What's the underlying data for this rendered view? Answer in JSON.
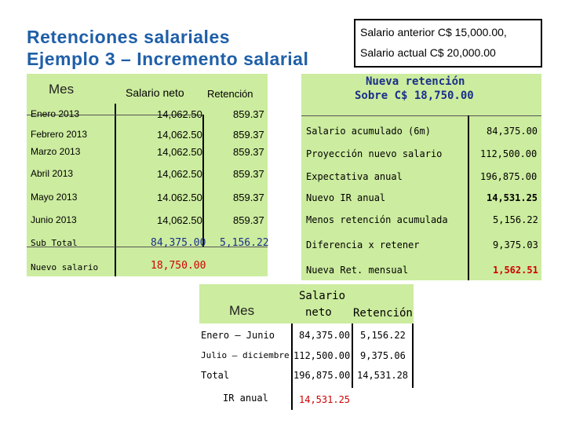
{
  "titles": {
    "line1": "Retenciones salariales",
    "line2": "Ejemplo 3 – Incremento salarial"
  },
  "info": {
    "line1": "Salario anterior C$ 15,000.00,",
    "line2": "Salario actual C$ 20,000.00"
  },
  "left_table": {
    "headers": {
      "mes": "Mes",
      "salario": "Salario neto",
      "retencion": "Retención"
    },
    "rows": [
      {
        "mes": "Enero 2013",
        "salario": "14,062.50",
        "retencion": "859.37"
      },
      {
        "mes": "Febrero 2013",
        "salario": "14,062.50",
        "retencion": "859.37"
      },
      {
        "mes": "Marzo 2013",
        "salario": "14,062.50",
        "retencion": "859.37"
      },
      {
        "mes": "Abril 2013",
        "salario": "14,062.50",
        "retencion": "859.37"
      },
      {
        "mes": "Mayo 2013",
        "salario": "14.062.50",
        "retencion": "859.37"
      },
      {
        "mes": "Junio 2013",
        "salario": "14,062.50",
        "retencion": "859.37"
      }
    ],
    "subtotal": {
      "label": "Sub Total",
      "salario": "84,375.00",
      "retencion": "5,156.22"
    },
    "nuevo": {
      "label": "Nuevo salario",
      "salario": "18,750.00"
    }
  },
  "right_table": {
    "header_line1": "Nueva retención",
    "header_line2": "Sobre C$ 18,750.00",
    "rows": [
      {
        "label": "Salario acumulado (6m)",
        "value": "84,375.00"
      },
      {
        "label": "Proyección nuevo salario",
        "value": "112,500.00"
      },
      {
        "label": "Expectativa anual",
        "value": "196,875.00"
      },
      {
        "label": "Nuevo IR anual",
        "value": "14,531.25"
      },
      {
        "label": "Menos retención acumulada",
        "value": "5,156.22"
      },
      {
        "label": "Diferencia x retener",
        "value": "9,375.03"
      },
      {
        "label": "Nueva Ret. mensual",
        "value": "1,562.51"
      }
    ]
  },
  "summary_table": {
    "headers": {
      "mes": "Mes",
      "salario_line1": "Salario",
      "salario_line2": "neto",
      "retencion": "Retención"
    },
    "rows": [
      {
        "mes": "Enero – Junio",
        "salario": "84,375.00",
        "retencion": "5,156.22"
      },
      {
        "mes": "Julio – diciembre",
        "salario": "112,500.00",
        "retencion": "9,375.06"
      },
      {
        "mes": "Total",
        "salario": "196,875.00",
        "retencion": "14,531.28"
      }
    ],
    "ir": {
      "label": "IR anual",
      "value": "14,531.25"
    }
  },
  "colors": {
    "title": "#1f5fa8",
    "green": "#ccec9f",
    "red": "#d00000",
    "blue": "#1a2f8a"
  }
}
